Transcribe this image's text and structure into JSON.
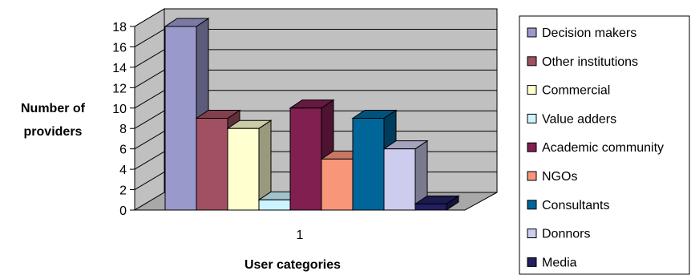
{
  "chart_data": {
    "type": "bar",
    "categories": [
      "1"
    ],
    "ylim": [
      0,
      18
    ],
    "ytick_labels": [
      "0",
      "2",
      "4",
      "6",
      "8",
      "10",
      "12",
      "14",
      "16",
      "18"
    ],
    "ylabel_lines": [
      "Number of",
      "providers"
    ],
    "xlabel": "User categories",
    "legend_position": "right",
    "grid": true,
    "series": [
      {
        "name": "Decision makers",
        "values": [
          18
        ],
        "color": "#9999CC"
      },
      {
        "name": "Other institutions",
        "values": [
          9
        ],
        "color": "#A05060"
      },
      {
        "name": "Commercial",
        "values": [
          8
        ],
        "color": "#FFFFD0"
      },
      {
        "name": "Value adders",
        "values": [
          1
        ],
        "color": "#CCF4FF"
      },
      {
        "name": "Academic community",
        "values": [
          10
        ],
        "color": "#801F50"
      },
      {
        "name": "NGOs",
        "values": [
          5
        ],
        "color": "#F8967A"
      },
      {
        "name": "Consultants",
        "values": [
          9
        ],
        "color": "#006699"
      },
      {
        "name": "Donnors",
        "values": [
          6
        ],
        "color": "#CCCCEE"
      },
      {
        "name": "Media",
        "values": [
          0.6
        ],
        "color": "#222060"
      }
    ]
  }
}
